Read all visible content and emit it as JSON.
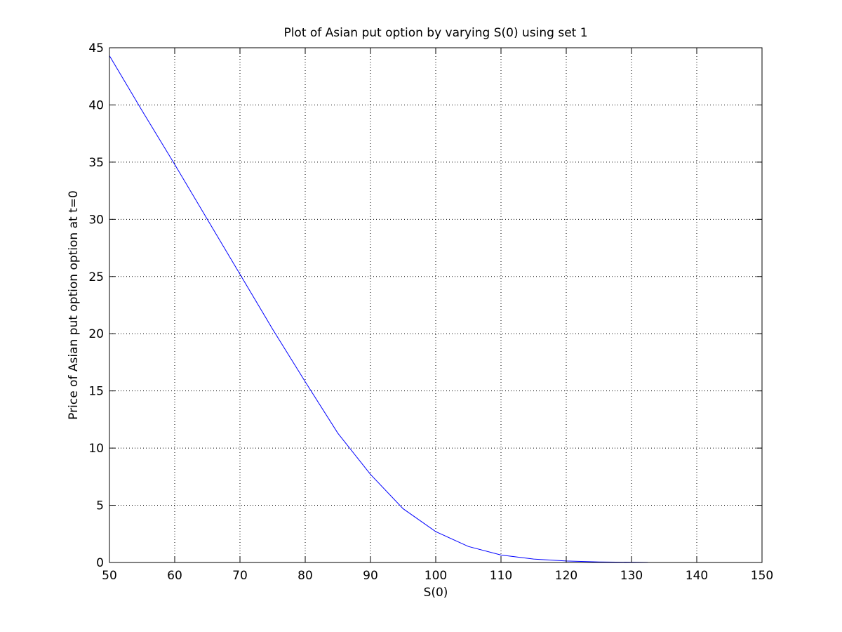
{
  "chart_data": {
    "type": "line",
    "title": "Plot of Asian put option by varying S(0) using set 1",
    "xlabel": "S(0)",
    "ylabel": "Price of Asian put option option at t=0",
    "xlim": [
      50,
      150
    ],
    "ylim": [
      0,
      45
    ],
    "xticks": [
      50,
      60,
      70,
      80,
      90,
      100,
      110,
      120,
      130,
      140,
      150
    ],
    "yticks": [
      0,
      5,
      10,
      15,
      20,
      25,
      30,
      35,
      40,
      45
    ],
    "grid": true,
    "legend": "none",
    "series": [
      {
        "color": "#0000ff",
        "x": [
          50,
          55,
          60,
          65,
          70,
          75,
          80,
          85,
          90,
          95,
          100,
          105,
          110,
          115,
          120,
          125,
          130,
          132.5
        ],
        "y": [
          44.3,
          39.5,
          34.8,
          30.0,
          25.2,
          20.4,
          15.8,
          11.3,
          7.7,
          4.7,
          2.7,
          1.4,
          0.65,
          0.3,
          0.13,
          0.05,
          0.02,
          0.01
        ]
      }
    ]
  }
}
